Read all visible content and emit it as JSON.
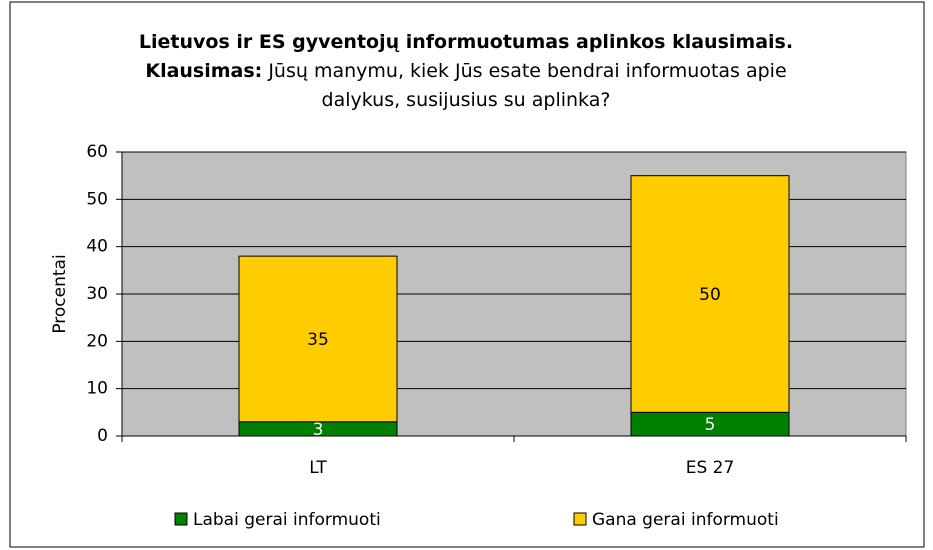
{
  "chart_data": {
    "type": "stacked_bar",
    "title": "Lietuvos ir ES gyventojų informuotumas aplinkos klausimais. Klausimas:",
    "subtitle": "Jūsų manymu, kiek Jūs esate bendrai informuotas apie dalykus, susijusius su aplinka?",
    "y_label": "Procentai",
    "categories": [
      "LT",
      "ES 27"
    ],
    "series": [
      {
        "name": "Labai gerai informuoti",
        "color": "#008000",
        "label_color": "#ffffff",
        "values": [
          3,
          5
        ]
      },
      {
        "name": "Gana gerai informuoti",
        "color": "#ffcc00",
        "label_color": "#000000",
        "values": [
          35,
          50
        ]
      }
    ],
    "ylim": [
      0,
      60
    ],
    "yticks": [
      0,
      10,
      20,
      30,
      40,
      50,
      60
    ],
    "grid": true,
    "plot_background": "#c0c0c0",
    "legend": "bottom"
  }
}
